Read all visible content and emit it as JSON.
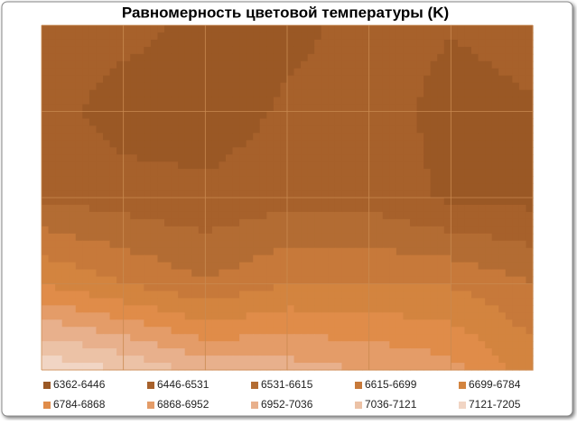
{
  "chart_data": {
    "type": "contour",
    "title": "Равномерность цветовой температуры (K)",
    "categories": [
      "6362-6446",
      "6446-6531",
      "6531-6615",
      "6615-6699",
      "6699-6784",
      "6784-6868",
      "6868-6952",
      "6952-7036",
      "7036-7121",
      "7121-7205"
    ],
    "bounds": [
      6362,
      6446,
      6531,
      6615,
      6699,
      6784,
      6868,
      6952,
      7036,
      7121,
      7205
    ],
    "colors": [
      "#9a5825",
      "#a7612b",
      "#b36c33",
      "#c7793a",
      "#d3843f",
      "#e08c49",
      "#e49c68",
      "#e8b08c",
      "#ecc2a6",
      "#f1d5c4"
    ],
    "z": [
      [
        6500,
        6480,
        6420,
        6420,
        6480,
        6450,
        6470
      ],
      [
        6490,
        6400,
        6390,
        6460,
        6480,
        6420,
        6440
      ],
      [
        6520,
        6490,
        6470,
        6500,
        6500,
        6430,
        6420
      ],
      [
        6780,
        6700,
        6620,
        6700,
        6700,
        6690,
        6620
      ],
      [
        7190,
        7120,
        7000,
        6990,
        6950,
        6900,
        6740
      ]
    ],
    "grid": true
  }
}
